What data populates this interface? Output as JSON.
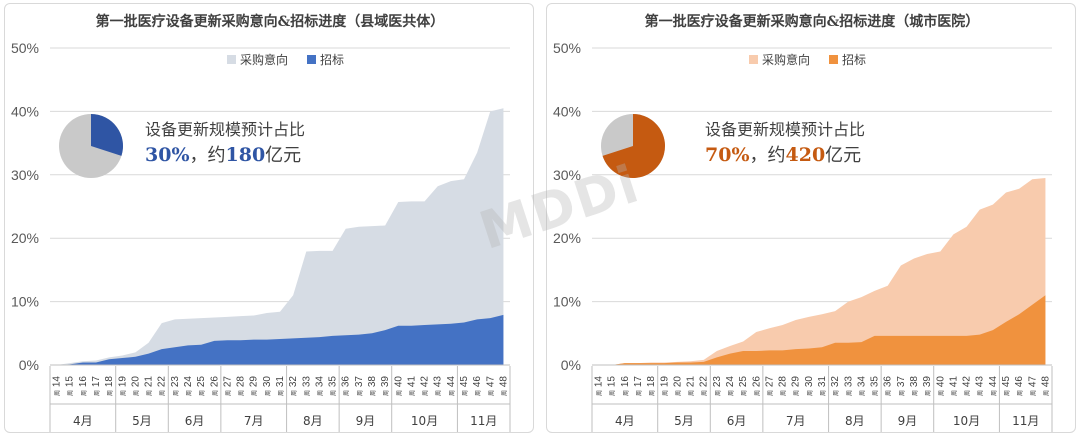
{
  "watermark": "MDDi",
  "week_suffix": "周",
  "chart_data": [
    {
      "type": "area",
      "title": "第一批医疗设备更新采购意向&招标进度（县域医共体）",
      "ylim": [
        0,
        0.5
      ],
      "ytick_labels": [
        "0%",
        "10%",
        "20%",
        "30%",
        "40%",
        "50%"
      ],
      "weeks": [
        14,
        15,
        16,
        17,
        18,
        19,
        20,
        21,
        22,
        23,
        24,
        25,
        26,
        27,
        28,
        29,
        30,
        31,
        32,
        33,
        34,
        35,
        36,
        37,
        38,
        39,
        40,
        41,
        42,
        43,
        44,
        45,
        46,
        47,
        48
      ],
      "months": [
        {
          "label": "4月",
          "from": 14,
          "to": 18
        },
        {
          "label": "5月",
          "from": 19,
          "to": 22
        },
        {
          "label": "6月",
          "from": 23,
          "to": 26
        },
        {
          "label": "7月",
          "from": 27,
          "to": 31
        },
        {
          "label": "8月",
          "from": 32,
          "to": 35
        },
        {
          "label": "9月",
          "from": 36,
          "to": 39
        },
        {
          "label": "10月",
          "from": 40,
          "to": 44
        },
        {
          "label": "11月",
          "from": 45,
          "to": 48
        }
      ],
      "grid": true,
      "legend_position": "top-center",
      "series": [
        {
          "name": "采购意向",
          "color": "#d6dce4",
          "values": [
            0.0,
            0.003,
            0.006,
            0.007,
            0.012,
            0.015,
            0.02,
            0.035,
            0.066,
            0.072,
            0.073,
            0.074,
            0.075,
            0.076,
            0.077,
            0.078,
            0.082,
            0.084,
            0.11,
            0.179,
            0.18,
            0.18,
            0.215,
            0.218,
            0.219,
            0.22,
            0.257,
            0.258,
            0.258,
            0.282,
            0.29,
            0.293,
            0.335,
            0.4,
            0.405
          ]
        },
        {
          "name": "招标",
          "color": "#4472c4",
          "values": [
            0.0,
            0.001,
            0.004,
            0.004,
            0.009,
            0.011,
            0.013,
            0.018,
            0.025,
            0.028,
            0.031,
            0.032,
            0.038,
            0.039,
            0.039,
            0.04,
            0.04,
            0.041,
            0.042,
            0.043,
            0.044,
            0.046,
            0.047,
            0.048,
            0.05,
            0.055,
            0.062,
            0.062,
            0.063,
            0.064,
            0.065,
            0.067,
            0.072,
            0.074,
            0.079
          ]
        }
      ],
      "pie": {
        "share": 0.3,
        "share_color": "#2f55a4",
        "rest_color": "#c9c9c9",
        "label": "设备更新规模预计占比",
        "percent": "30%",
        "sep": "，约",
        "amount": "180",
        "unit": "亿元",
        "accent": "#2f55a4"
      }
    },
    {
      "type": "area",
      "title": "第一批医疗设备更新采购意向&招标进度（城市医院）",
      "ylim": [
        0,
        0.5
      ],
      "ytick_labels": [
        "0%",
        "10%",
        "20%",
        "30%",
        "40%",
        "50%"
      ],
      "weeks": [
        14,
        15,
        16,
        17,
        18,
        19,
        20,
        21,
        22,
        23,
        24,
        25,
        26,
        27,
        28,
        29,
        30,
        31,
        32,
        33,
        34,
        35,
        36,
        37,
        38,
        39,
        40,
        41,
        42,
        43,
        44,
        45,
        46,
        47,
        48
      ],
      "months": [
        {
          "label": "4月",
          "from": 14,
          "to": 18
        },
        {
          "label": "5月",
          "from": 19,
          "to": 22
        },
        {
          "label": "6月",
          "from": 23,
          "to": 26
        },
        {
          "label": "7月",
          "from": 27,
          "to": 31
        },
        {
          "label": "8月",
          "from": 32,
          "to": 35
        },
        {
          "label": "9月",
          "from": 36,
          "to": 39
        },
        {
          "label": "10月",
          "from": 40,
          "to": 44
        },
        {
          "label": "11月",
          "from": 45,
          "to": 48
        }
      ],
      "grid": true,
      "legend_position": "top-center",
      "series": [
        {
          "name": "采购意向",
          "color": "#f8cbad",
          "values": [
            0.0,
            0.0,
            0.003,
            0.003,
            0.004,
            0.004,
            0.005,
            0.006,
            0.008,
            0.022,
            0.03,
            0.037,
            0.052,
            0.058,
            0.063,
            0.071,
            0.076,
            0.08,
            0.085,
            0.1,
            0.107,
            0.117,
            0.125,
            0.157,
            0.168,
            0.175,
            0.179,
            0.206,
            0.218,
            0.245,
            0.253,
            0.272,
            0.278,
            0.293,
            0.295
          ]
        },
        {
          "name": "招标",
          "color": "#f0923e",
          "values": [
            0.0,
            0.0,
            0.003,
            0.003,
            0.003,
            0.003,
            0.004,
            0.004,
            0.005,
            0.012,
            0.018,
            0.022,
            0.022,
            0.023,
            0.023,
            0.025,
            0.026,
            0.028,
            0.035,
            0.035,
            0.036,
            0.046,
            0.046,
            0.046,
            0.046,
            0.046,
            0.046,
            0.046,
            0.046,
            0.048,
            0.055,
            0.068,
            0.08,
            0.095,
            0.11
          ]
        }
      ],
      "pie": {
        "share": 0.7,
        "share_color": "#c55a11",
        "rest_color": "#c9c9c9",
        "label": "设备更新规模预计占比",
        "percent": "70%",
        "sep": "，约",
        "amount": "420",
        "unit": "亿元",
        "accent": "#c55a11"
      }
    }
  ]
}
